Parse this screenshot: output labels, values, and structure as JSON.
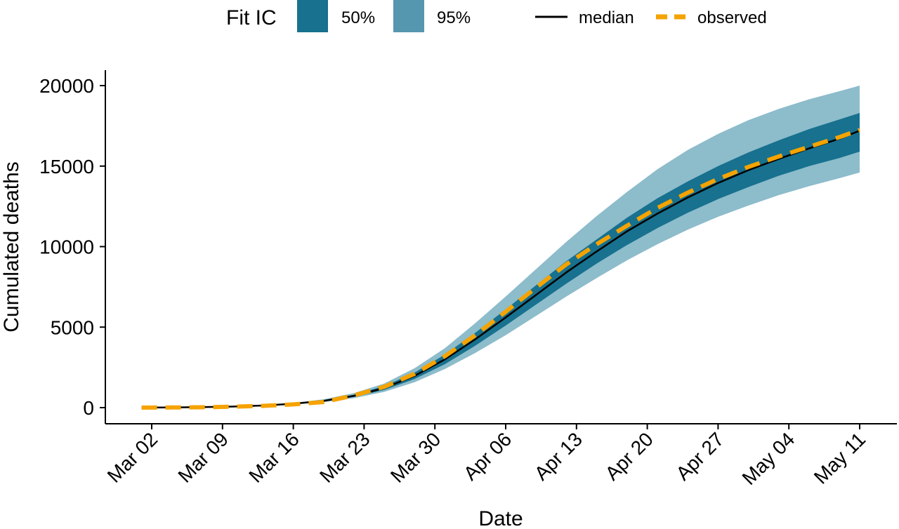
{
  "chart_data": {
    "type": "line",
    "title": "",
    "xlabel": "Date",
    "ylabel": "Cumulated deaths",
    "x_ticks": [
      "Mar 02",
      "Mar 09",
      "Mar 16",
      "Mar 23",
      "Mar 30",
      "Apr 06",
      "Apr 13",
      "Apr 20",
      "Apr 27",
      "May 04",
      "May 11"
    ],
    "y_ticks": [
      0,
      5000,
      10000,
      15000,
      20000
    ],
    "xlim": [
      "2020-02-26",
      "2020-05-14"
    ],
    "ylim": [
      -1000,
      21000
    ],
    "grid": false,
    "legend": {
      "position": "top",
      "title": "Fit IC",
      "band_labels": [
        "50%",
        "95%"
      ],
      "line_labels": [
        "median",
        "observed"
      ]
    },
    "colors": {
      "band50": "#17718f",
      "band95": "#5597ae",
      "band95_plot": "#8dbccb",
      "median": "#000000",
      "observed": "#f5a300",
      "axis": "#000000"
    },
    "x": [
      "2020-03-01",
      "2020-03-04",
      "2020-03-07",
      "2020-03-10",
      "2020-03-13",
      "2020-03-16",
      "2020-03-19",
      "2020-03-22",
      "2020-03-25",
      "2020-03-28",
      "2020-03-31",
      "2020-04-03",
      "2020-04-06",
      "2020-04-09",
      "2020-04-12",
      "2020-04-15",
      "2020-04-18",
      "2020-04-21",
      "2020-04-24",
      "2020-04-27",
      "2020-04-30",
      "2020-05-03",
      "2020-05-06",
      "2020-05-09",
      "2020-05-11"
    ],
    "series": [
      {
        "name": "median",
        "kind": "line",
        "values": [
          5,
          12,
          30,
          65,
          130,
          240,
          420,
          730,
          1220,
          1980,
          3000,
          4250,
          5600,
          7000,
          8400,
          9700,
          10950,
          12050,
          13050,
          13950,
          14750,
          15450,
          16100,
          16700,
          17200
        ]
      },
      {
        "name": "observed",
        "kind": "line",
        "values": [
          0,
          8,
          22,
          55,
          110,
          200,
          350,
          760,
          1300,
          2100,
          3200,
          4500,
          5950,
          7450,
          8900,
          10150,
          11300,
          12400,
          13350,
          14200,
          14950,
          15600,
          16200,
          16800,
          17250
        ]
      },
      {
        "name": "50%",
        "kind": "band",
        "lower": [
          5,
          11,
          28,
          60,
          120,
          220,
          380,
          660,
          1100,
          1780,
          2700,
          3850,
          5100,
          6400,
          7700,
          8950,
          10100,
          11150,
          12100,
          12950,
          13700,
          14400,
          15000,
          15500,
          15900
        ],
        "upper": [
          5,
          13,
          32,
          70,
          140,
          260,
          460,
          800,
          1340,
          2180,
          3300,
          4650,
          6100,
          7600,
          9100,
          10450,
          11800,
          13000,
          14050,
          15000,
          15850,
          16600,
          17300,
          17900,
          18300
        ]
      },
      {
        "name": "95%",
        "kind": "band",
        "lower": [
          4,
          10,
          25,
          55,
          110,
          200,
          340,
          590,
          980,
          1580,
          2400,
          3400,
          4500,
          5700,
          6900,
          8050,
          9150,
          10150,
          11050,
          11850,
          12550,
          13200,
          13750,
          14250,
          14600
        ],
        "upper": [
          6,
          14,
          35,
          78,
          155,
          290,
          520,
          900,
          1500,
          2450,
          3700,
          5250,
          6900,
          8600,
          10300,
          11900,
          13400,
          14800,
          16000,
          17000,
          17850,
          18550,
          19150,
          19650,
          20000
        ]
      }
    ]
  }
}
